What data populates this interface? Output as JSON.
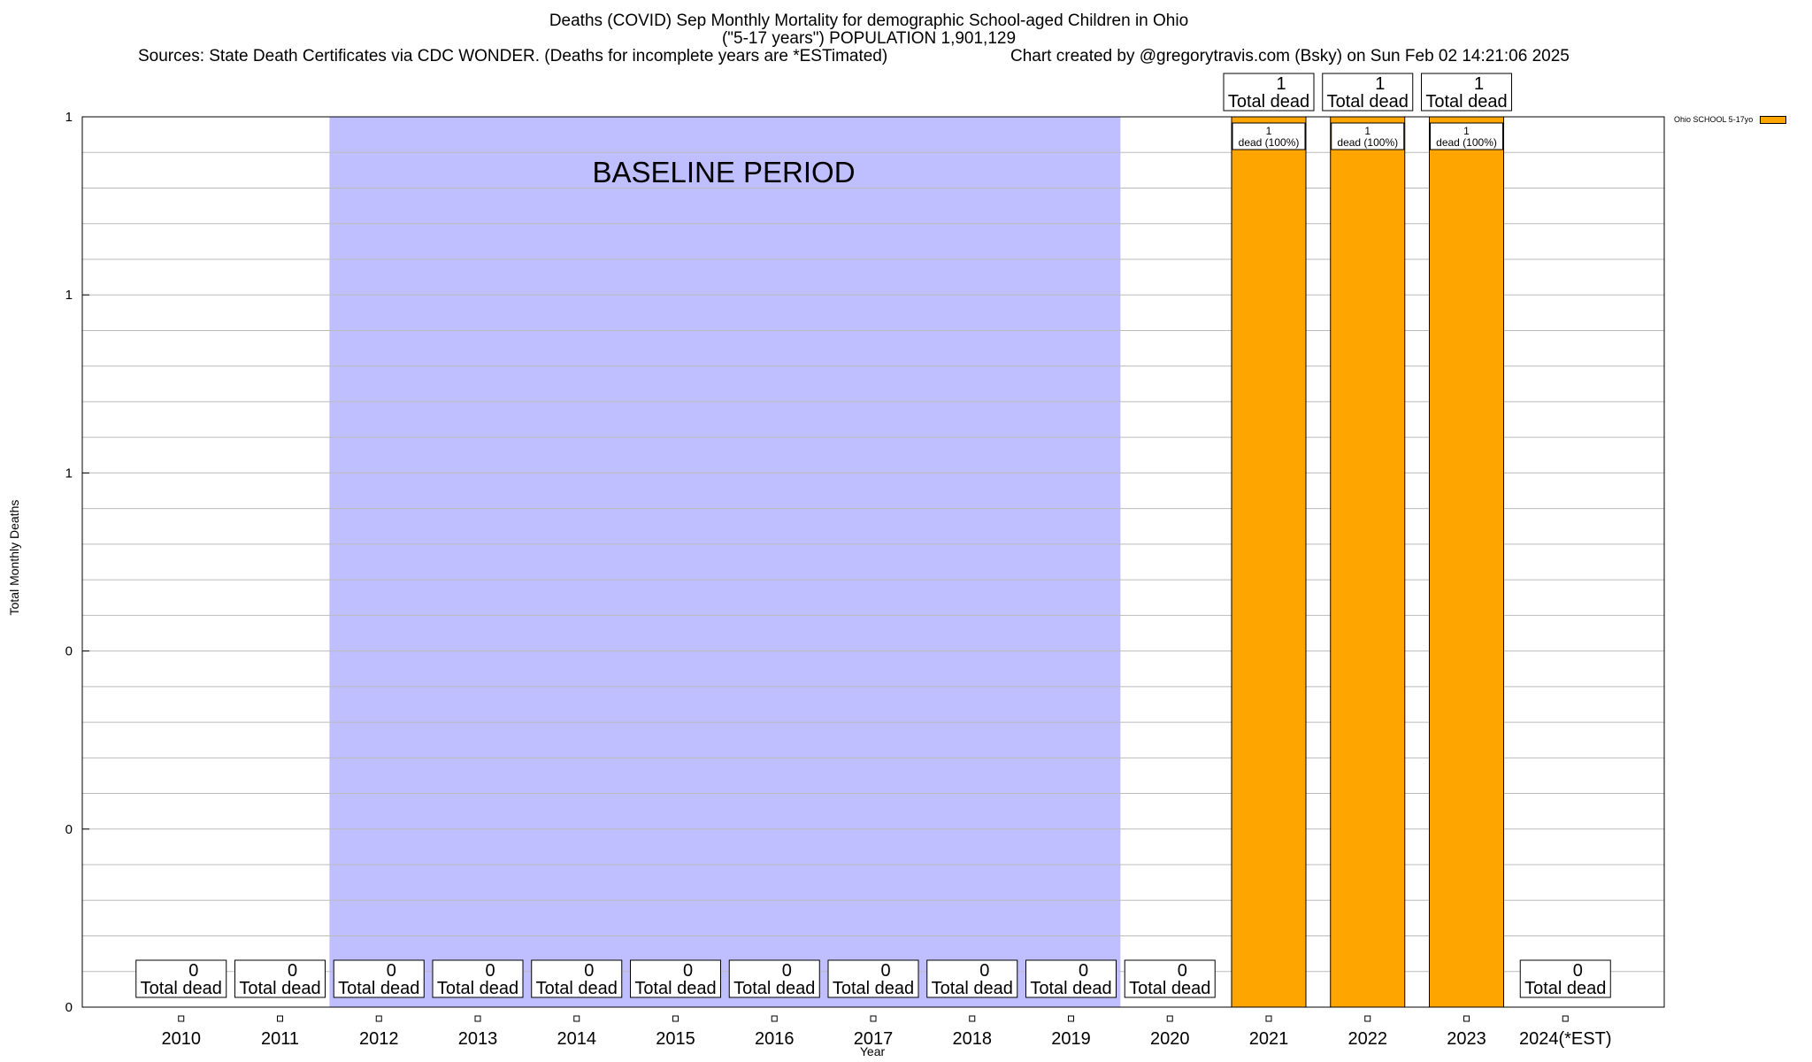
{
  "title_line1": "Deaths (COVID) Sep Monthly Mortality for demographic School-aged Children in Ohio",
  "title_line2": "(\"5-17 years\") POPULATION 1,901,129",
  "sources": "Sources: State Death Certificates via CDC WONDER. (Deaths for incomplete years are *ESTimated)",
  "credit": "Chart created by @gregorytravis.com (Bsky) on Sun Feb 02 14:21:06 2025",
  "colors": {
    "bar": "#FFA500",
    "baseline_band": "#BFBFFF",
    "grid": "#BBBBBB"
  },
  "chart_data": {
    "type": "bar",
    "xlabel": "Year",
    "ylabel": "Total Monthly Deaths",
    "ylim": [
      0,
      1
    ],
    "yticks": [
      0,
      0.2,
      0.4,
      0.6,
      0.8,
      1
    ],
    "ytick_labels": [
      "0",
      "0",
      "0",
      "1",
      "1",
      "1"
    ],
    "grid": true,
    "legend_position": "top-right",
    "categories": [
      "2010",
      "2011",
      "2012",
      "2013",
      "2014",
      "2015",
      "2016",
      "2017",
      "2018",
      "2019",
      "2020",
      "2021",
      "2022",
      "2023",
      "2024(*EST)"
    ],
    "series": [
      {
        "name": "Ohio SCHOOL 5-17yo",
        "values": [
          0,
          0,
          0,
          0,
          0,
          0,
          0,
          0,
          0,
          0,
          0,
          1,
          1,
          1,
          0
        ]
      }
    ],
    "total_label_word": "Total dead",
    "inner_label_word": "dead (100%)",
    "baseline": {
      "label": "BASELINE PERIOD",
      "from": "2012",
      "to": "2019"
    }
  }
}
